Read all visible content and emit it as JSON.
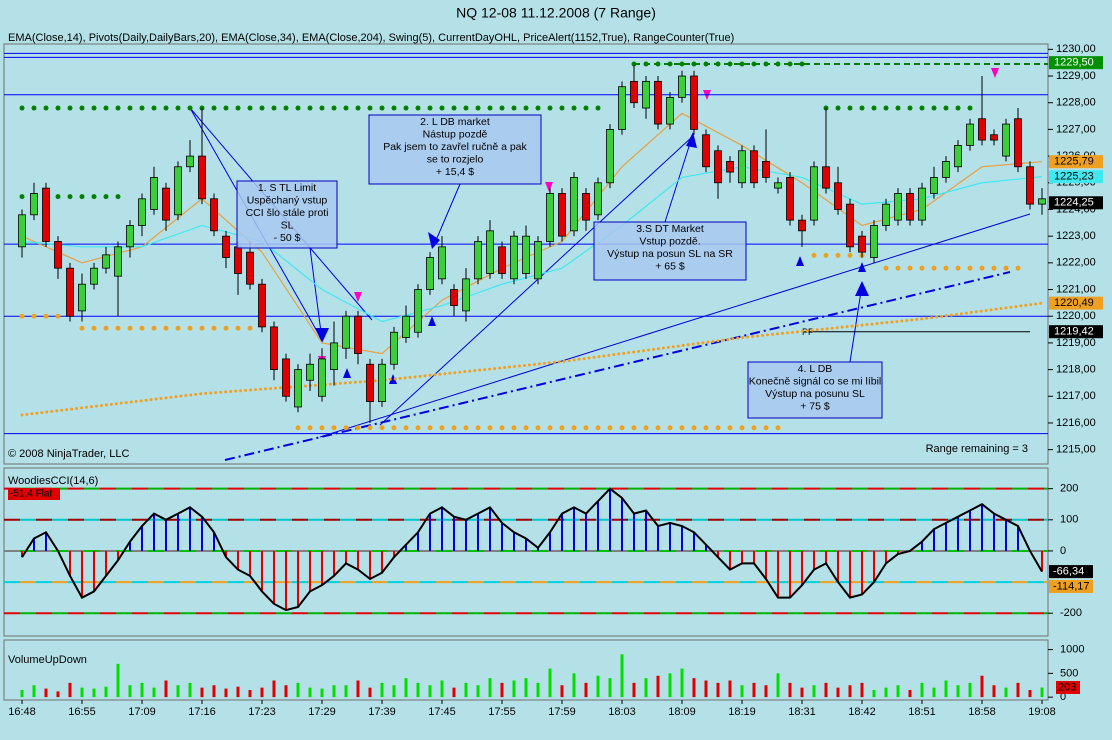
{
  "chart_data": [
    {
      "type": "candlestick",
      "title": "NQ 12-08  11.12.2008 (7 Range)",
      "subtitle": "EMA(Close,14), Pivots(Daily,DailyBars,20), EMA(Close,34), EMA(Close,204), Swing(5), CurrentDayOHL, PriceAlert(1152,True), RangeCounter(True)",
      "copyright": "© 2008 NinjaTrader, LLC",
      "range_text": "Range remaining = 3",
      "categories": [
        "16:48",
        null,
        null,
        null,
        null,
        "16:55",
        null,
        null,
        null,
        null,
        "17:09",
        null,
        null,
        null,
        null,
        "17:16",
        null,
        null,
        null,
        null,
        "17:23",
        null,
        null,
        null,
        null,
        "17:29",
        null,
        null,
        null,
        null,
        "17:39",
        null,
        null,
        null,
        null,
        "17:45",
        null,
        null,
        null,
        null,
        "17:55",
        null,
        null,
        null,
        null,
        "17:59",
        null,
        null,
        null,
        null,
        "18:03",
        null,
        null,
        null,
        null,
        "18:09",
        null,
        null,
        null,
        null,
        "18:19",
        null,
        null,
        null,
        null,
        "18:31",
        null,
        null,
        null,
        null,
        "18:42",
        null,
        null,
        null,
        null,
        "18:51",
        null,
        null,
        null,
        null,
        "18:58",
        null,
        null,
        null,
        null,
        "19:08"
      ],
      "open": [
        1222.6,
        1223.8,
        1224.8,
        1222.8,
        1221.8,
        1220.2,
        1221.2,
        1221.8,
        1221.5,
        1222.6,
        1223.4,
        1224.0,
        1224.8,
        1223.8,
        1225.6,
        1226.0,
        1224.4,
        1223.0,
        1222.6,
        1222.4,
        1221.2,
        1219.6,
        1218.4,
        1216.6,
        1217.6,
        1217.0,
        1218.0,
        1218.8,
        1220.0,
        1218.2,
        1216.8,
        1218.2,
        1219.2,
        1219.4,
        1221.0,
        1221.4,
        1221.0,
        1220.2,
        1221.4,
        1221.6,
        1222.6,
        1221.4,
        1221.6,
        1221.4,
        1222.8,
        1224.6,
        1223.2,
        1224.6,
        1223.8,
        1225.0,
        1227.0,
        1228.8,
        1227.8,
        1228.8,
        1227.2,
        1228.2,
        1229.0,
        1226.8,
        1226.2,
        1225.8,
        1225.0,
        1226.2,
        1225.8,
        1224.8,
        1225.2,
        1223.6,
        1223.6,
        1225.6,
        1225.0,
        1224.2,
        1223.0,
        1222.2,
        1223.4,
        1223.6,
        1224.6,
        1223.6,
        1224.6,
        1225.2,
        1225.6,
        1226.4,
        1227.4,
        1226.8,
        1226.0,
        1227.4,
        1225.6,
        1224.2
      ],
      "high": [
        1224.0,
        1225.0,
        1225.0,
        1223.0,
        1222.0,
        1221.6,
        1222.0,
        1222.6,
        1222.8,
        1223.6,
        1224.6,
        1225.6,
        1225.0,
        1225.8,
        1226.6,
        1227.8,
        1224.6,
        1223.2,
        1222.8,
        1222.8,
        1221.4,
        1219.8,
        1218.6,
        1218.2,
        1218.6,
        1218.8,
        1219.8,
        1220.2,
        1220.2,
        1218.4,
        1218.4,
        1219.6,
        1220.4,
        1221.2,
        1222.4,
        1223.0,
        1221.2,
        1221.8,
        1223.0,
        1223.6,
        1222.8,
        1223.2,
        1223.4,
        1223.0,
        1224.8,
        1224.8,
        1225.4,
        1224.8,
        1225.2,
        1227.2,
        1228.8,
        1229.4,
        1229.0,
        1229.0,
        1228.4,
        1229.2,
        1229.2,
        1227.0,
        1226.4,
        1226.0,
        1226.4,
        1226.4,
        1227.0,
        1225.2,
        1225.4,
        1223.8,
        1225.8,
        1227.8,
        1225.6,
        1224.4,
        1223.2,
        1223.6,
        1224.4,
        1224.8,
        1224.8,
        1225.0,
        1225.6,
        1226.0,
        1226.6,
        1227.4,
        1229.0,
        1227.0,
        1227.4,
        1227.8,
        1225.8,
        1224.8
      ],
      "low": [
        1222.2,
        1223.6,
        1222.6,
        1221.4,
        1219.8,
        1219.8,
        1221.0,
        1221.6,
        1220.0,
        1222.2,
        1223.0,
        1223.8,
        1223.2,
        1223.6,
        1225.4,
        1224.2,
        1223.0,
        1221.8,
        1220.8,
        1221.0,
        1219.4,
        1217.6,
        1216.8,
        1216.4,
        1217.2,
        1216.8,
        1217.4,
        1218.4,
        1218.2,
        1216.0,
        1216.6,
        1218.0,
        1219.0,
        1219.2,
        1220.8,
        1221.2,
        1220.0,
        1219.8,
        1221.2,
        1221.4,
        1221.4,
        1221.2,
        1221.4,
        1221.2,
        1222.6,
        1222.8,
        1223.0,
        1223.2,
        1223.6,
        1224.8,
        1226.8,
        1227.8,
        1227.4,
        1227.0,
        1227.0,
        1228.0,
        1226.8,
        1225.4,
        1224.4,
        1225.0,
        1224.8,
        1224.8,
        1225.0,
        1224.6,
        1223.4,
        1222.6,
        1223.4,
        1224.6,
        1223.8,
        1222.4,
        1222.2,
        1222.0,
        1223.2,
        1223.4,
        1223.4,
        1223.4,
        1224.4,
        1225.0,
        1225.4,
        1226.2,
        1226.4,
        1226.4,
        1225.8,
        1225.4,
        1224.0,
        1223.8
      ],
      "close": [
        1223.8,
        1224.6,
        1222.8,
        1221.8,
        1220.0,
        1221.2,
        1221.8,
        1222.3,
        1222.6,
        1223.4,
        1224.4,
        1225.2,
        1223.6,
        1225.6,
        1226.0,
        1224.4,
        1223.2,
        1222.2,
        1221.6,
        1221.2,
        1219.6,
        1218.0,
        1217.0,
        1218.0,
        1218.2,
        1218.4,
        1219.0,
        1220.0,
        1218.6,
        1216.8,
        1218.2,
        1219.4,
        1220.0,
        1221.0,
        1222.2,
        1222.6,
        1220.4,
        1221.4,
        1222.8,
        1223.2,
        1221.6,
        1223.0,
        1223.0,
        1222.8,
        1224.6,
        1223.0,
        1225.2,
        1223.6,
        1225.0,
        1227.0,
        1228.6,
        1228.0,
        1228.8,
        1227.2,
        1228.2,
        1229.0,
        1227.0,
        1225.6,
        1225.0,
        1225.4,
        1226.2,
        1225.0,
        1225.2,
        1225.0,
        1223.6,
        1223.2,
        1225.6,
        1224.8,
        1224.0,
        1222.6,
        1222.4,
        1223.4,
        1224.2,
        1224.6,
        1223.6,
        1224.8,
        1225.2,
        1225.8,
        1226.4,
        1227.2,
        1226.6,
        1226.6,
        1227.2,
        1225.6,
        1224.2,
        1224.4
      ],
      "up_color": "#3ccf3c",
      "down_color": "#e00000",
      "ylim": [
        1214.5,
        1230.2
      ],
      "yticks": [
        {
          "value": 1215,
          "label": "1215,00"
        },
        {
          "value": 1216,
          "label": "1216,00"
        },
        {
          "value": 1217,
          "label": "1217,00"
        },
        {
          "value": 1218,
          "label": "1218,00"
        },
        {
          "value": 1219,
          "label": "1219,00"
        },
        {
          "value": 1220,
          "label": "1220,00"
        },
        {
          "value": 1221,
          "label": "1221,00"
        },
        {
          "value": 1222,
          "label": "1222,00"
        },
        {
          "value": 1223,
          "label": "1223,00"
        },
        {
          "value": 1224,
          "label": "1224,00"
        },
        {
          "value": 1225,
          "label": "1225,00"
        },
        {
          "value": 1226,
          "label": "1226,00"
        },
        {
          "value": 1227,
          "label": "1227,00"
        },
        {
          "value": 1228,
          "label": "1228,00"
        },
        {
          "value": 1229,
          "label": "1229,00"
        },
        {
          "value": 1230,
          "label": "1230,00"
        }
      ],
      "lines": [
        {
          "color": "#e8a040",
          "style": "solid",
          "x": [
            0,
            5,
            10,
            15,
            20,
            25,
            30,
            35,
            40,
            45,
            50,
            55,
            60,
            65,
            70,
            75,
            80,
            85
          ],
          "values": [
            1223.0,
            1222.0,
            1222.6,
            1224.4,
            1222.4,
            1219.0,
            1218.6,
            1220.6,
            1221.8,
            1222.8,
            1225.6,
            1227.6,
            1226.4,
            1225.0,
            1223.4,
            1224.0,
            1225.6,
            1225.79
          ]
        },
        {
          "color": "#40e8f0",
          "style": "solid",
          "x": [
            0,
            5,
            10,
            15,
            20,
            25,
            30,
            35,
            40,
            45,
            50,
            55,
            60,
            65,
            70,
            75,
            80,
            85
          ],
          "values": [
            1222.8,
            1222.6,
            1222.6,
            1223.4,
            1222.8,
            1221.0,
            1219.8,
            1220.4,
            1221.2,
            1221.8,
            1223.4,
            1225.2,
            1225.6,
            1225.2,
            1224.2,
            1224.4,
            1225.0,
            1225.23
          ]
        },
        {
          "color": "#f0a020",
          "style": "dotted",
          "x": [
            0,
            15,
            30,
            45,
            60,
            75,
            85
          ],
          "values": [
            1216.3,
            1217.1,
            1217.6,
            1218.3,
            1219.2,
            1219.9,
            1220.49
          ]
        }
      ],
      "levels": [
        1229.85,
        1229.7,
        1228.3,
        1222.7,
        1220.0,
        1215.6
      ],
      "level_color": "#0000ff",
      "day_high": {
        "value": 1229.45,
        "from": 51,
        "to": 85,
        "color": "#008000"
      },
      "pivot": {
        "label": "PP",
        "value": 1219.42,
        "from": 65,
        "to": 84
      },
      "swings": [
        {
          "value": 1227.8,
          "from": 0,
          "to": 49,
          "color": "#008000"
        },
        {
          "value": 1229.45,
          "from": 51,
          "to": 66,
          "color": "#008000"
        },
        {
          "value": 1224.48,
          "from": 0,
          "to": 9,
          "color": "#008000"
        },
        {
          "value": 1227.8,
          "from": 67,
          "to": 80,
          "color": "#008000"
        },
        {
          "value": 1220.0,
          "from": 0,
          "to": 4,
          "color": "#f0a020"
        },
        {
          "value": 1219.55,
          "from": 5,
          "to": 20,
          "color": "#f0a020"
        },
        {
          "value": 1215.82,
          "from": 23,
          "to": 64,
          "color": "#f0a020"
        },
        {
          "value": 1222.28,
          "from": 66,
          "to": 71,
          "color": "#f0a020"
        },
        {
          "value": 1221.8,
          "from": 72,
          "to": 84,
          "color": "#f0a020"
        }
      ],
      "badges": [
        {
          "value": 1229.5,
          "label": "1229,50",
          "color": "#009000"
        },
        {
          "value": 1225.79,
          "label": "1225,79",
          "color": "#f0a020"
        },
        {
          "value": 1225.23,
          "label": "1225,23",
          "color": "#40e8f0"
        },
        {
          "value": 1224.25,
          "label": "1224,25",
          "color": "#000000"
        },
        {
          "value": 1220.49,
          "label": "1220,49",
          "color": "#f0a020"
        },
        {
          "value": 1219.42,
          "label": "1219,42",
          "color": "#000000"
        }
      ],
      "annotations": [
        {
          "lines": [
            "1. S TL Limit",
            "Uspěchaný vstup",
            "CCI šlo stále proti",
            "SL",
            "- 50 $"
          ]
        },
        {
          "lines": [
            "2. L DB market",
            "Nástup pozdě",
            "Pak jsem to zavřel ručně a pak",
            "se to rozjelo",
            "+ 15,4 $"
          ]
        },
        {
          "lines": [
            "3.S  DT  Market",
            "Vstup pozdě.",
            "Výstup na posun SL na SR",
            "+ 65 $"
          ]
        },
        {
          "lines": [
            "4. L DB",
            "Konečně signál co se mi líbil",
            "Výstup na posunu SL",
            "+ 75 $"
          ]
        }
      ]
    },
    {
      "type": "bar",
      "title": "WoodiesCCI(14,6)",
      "status": "-51,4 Flat",
      "status_color": "#e00000",
      "values": [
        -20,
        40,
        60,
        0,
        -80,
        -150,
        -130,
        -80,
        -30,
        30,
        80,
        120,
        100,
        120,
        140,
        110,
        60,
        -20,
        -60,
        -80,
        -130,
        -170,
        -190,
        -180,
        -130,
        -110,
        -80,
        -40,
        -60,
        -90,
        -70,
        -20,
        20,
        60,
        120,
        140,
        110,
        100,
        120,
        140,
        90,
        60,
        40,
        10,
        60,
        120,
        140,
        120,
        160,
        200,
        170,
        120,
        130,
        80,
        90,
        80,
        60,
        20,
        -20,
        -60,
        -40,
        -40,
        -90,
        -150,
        -150,
        -110,
        -60,
        -40,
        -100,
        -150,
        -140,
        -100,
        -40,
        -10,
        0,
        30,
        70,
        90,
        110,
        130,
        150,
        120,
        100,
        80,
        0,
        -66.34
      ],
      "up_color": "#0000e0",
      "down_color": "#e00000",
      "line_color": "#000000",
      "ylim": [
        -270,
        260
      ],
      "yticks": [
        -200,
        0,
        100,
        200
      ],
      "levels": [
        {
          "value": 200,
          "colors": [
            "#e00000",
            "#00b000"
          ]
        },
        {
          "value": 100,
          "colors": [
            "#a00000",
            "#00c8c8"
          ]
        },
        {
          "value": 0,
          "colors": [
            "#808080",
            "#00c000"
          ]
        },
        {
          "value": -100,
          "colors": [
            "#00d0e0",
            "#f0a020"
          ]
        },
        {
          "value": -200,
          "colors": [
            "#e00000",
            "#00b000"
          ]
        }
      ],
      "badges": [
        {
          "value": -66.34,
          "label": "-66,34",
          "color": "#000000"
        },
        {
          "value": -114.17,
          "label": "-114,17",
          "color": "#f0a020"
        }
      ]
    },
    {
      "type": "bar",
      "title": "VolumeUpDown",
      "values": [
        150,
        250,
        180,
        120,
        300,
        200,
        180,
        220,
        700,
        250,
        300,
        200,
        350,
        250,
        300,
        200,
        250,
        180,
        220,
        150,
        200,
        350,
        250,
        300,
        200,
        180,
        250,
        250,
        350,
        200,
        300,
        250,
        400,
        300,
        250,
        350,
        200,
        300,
        250,
        400,
        300,
        350,
        400,
        300,
        600,
        250,
        500,
        300,
        450,
        400,
        900,
        300,
        400,
        450,
        500,
        600,
        400,
        350,
        300,
        350,
        250,
        300,
        250,
        500,
        300,
        200,
        250,
        300,
        200,
        250,
        300,
        150,
        200,
        250,
        150,
        300,
        200,
        350,
        250,
        300,
        450,
        250,
        200,
        300,
        150,
        203
      ],
      "up_color": "#00e000",
      "down_color": "#e00000",
      "badge_color": "#e00000",
      "ylim": [
        -60,
        1180
      ],
      "yticks": [
        0,
        500,
        1000
      ]
    }
  ]
}
